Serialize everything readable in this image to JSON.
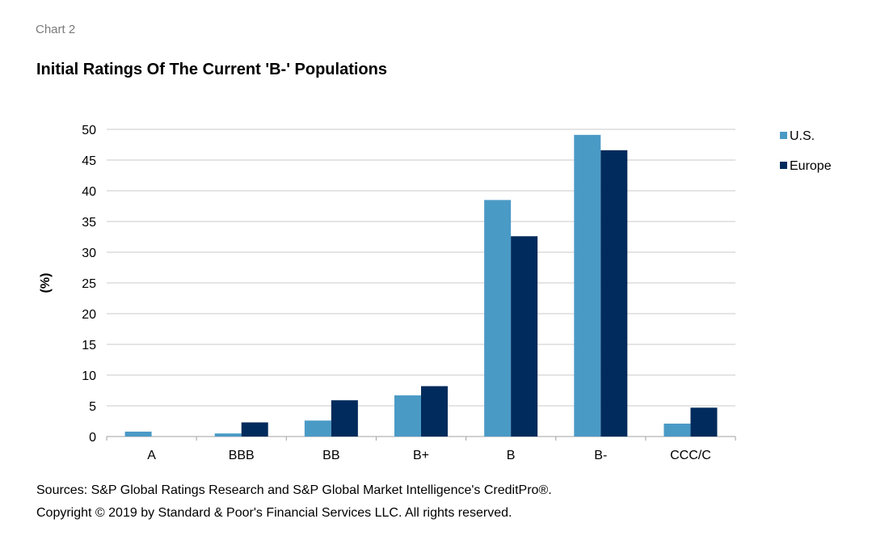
{
  "header": {
    "chart_label": "Chart 2",
    "title": "Initial Ratings Of The Current 'B-' Populations"
  },
  "footer": {
    "sources": "Sources: S&P Global Ratings Research and S&P Global Market Intelligence's CreditPro®.",
    "copyright": "Copyright © 2019 by Standard & Poor's Financial Services LLC. All rights reserved."
  },
  "chart_data": {
    "type": "bar",
    "title": "Initial Ratings Of The Current 'B-' Populations",
    "xlabel": "",
    "ylabel": "(%)",
    "ylim": [
      0,
      50
    ],
    "yticks": [
      0,
      5,
      10,
      15,
      20,
      25,
      30,
      35,
      40,
      45,
      50
    ],
    "grid": true,
    "legend_position": "top-right",
    "categories": [
      "A",
      "BBB",
      "BB",
      "B+",
      "B",
      "B-",
      "CCC/C"
    ],
    "series": [
      {
        "name": "U.S.",
        "color": "#4a9ac6",
        "values": [
          0.8,
          0.5,
          2.6,
          6.7,
          38.5,
          49.1,
          2.1
        ]
      },
      {
        "name": "Europe",
        "color": "#002b5c",
        "values": [
          0,
          2.3,
          5.9,
          8.2,
          32.6,
          46.6,
          4.7
        ]
      }
    ]
  }
}
